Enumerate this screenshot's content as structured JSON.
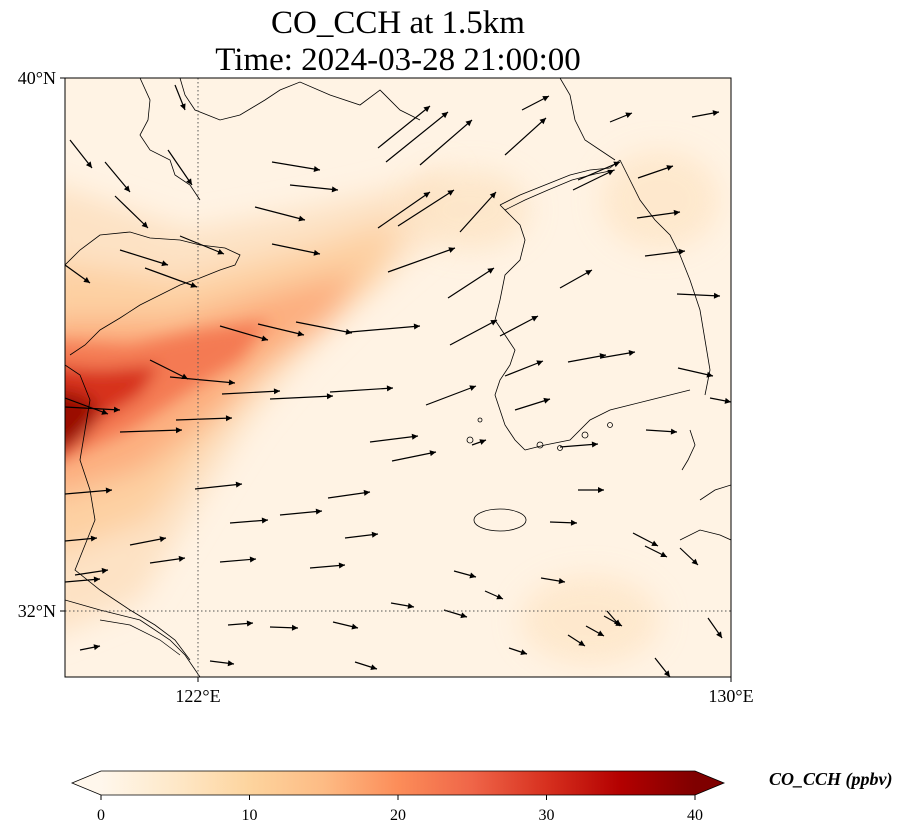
{
  "title": {
    "line1": "CO_CCH at 1.5km",
    "line2": "Time: 2024-03-28 21:00:00"
  },
  "map": {
    "variable": "CO_CCH",
    "level": "1.5km",
    "extent": {
      "lon": [
        119.6,
        130.0
      ],
      "lat": [
        31.2,
        40.0
      ]
    },
    "lat_ticks": [
      {
        "value": 40,
        "label": "40°N"
      },
      {
        "value": 32,
        "label": "32°N"
      }
    ],
    "lon_ticks": [
      {
        "value": 122,
        "label": "122°E"
      },
      {
        "value": 130,
        "label": "130°E"
      }
    ],
    "gridlines": {
      "lon": 122,
      "lat": 32,
      "style": "dotted"
    },
    "plume": "high concentrations over the eastern China coast near 34°N, fanning out east-northeast over the Yellow Sea",
    "wind_vectors": "black arrows, predominantly westerly to west-southwesterly flow"
  },
  "colorbar": {
    "label": "CO_CCH (ppbv)",
    "min": 0,
    "max": 40,
    "ticks": [
      "0",
      "10",
      "20",
      "30",
      "40"
    ],
    "extend": "both",
    "colormap": "OrRd",
    "colors": [
      "#fff7ec",
      "#fee8c8",
      "#fdd49e",
      "#fdbb84",
      "#fc8d59",
      "#ef6548",
      "#d7301f",
      "#b30000",
      "#7f0000"
    ]
  }
}
